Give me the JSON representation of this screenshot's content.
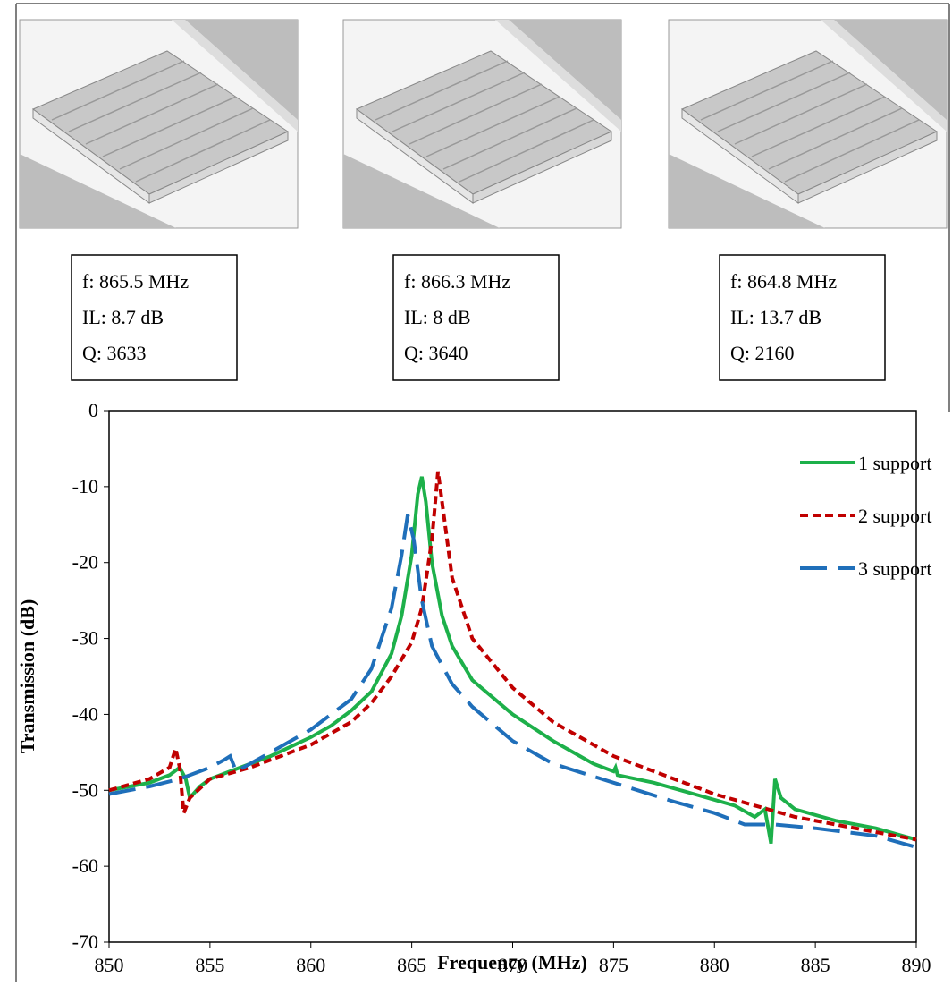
{
  "chart_data": {
    "type": "line",
    "xlabel": "Frequency (MHz)",
    "ylabel": "Transmission (dB)",
    "xlim": [
      850,
      890
    ],
    "ylim": [
      -70,
      0
    ],
    "xticks": [
      850,
      855,
      860,
      865,
      870,
      875,
      880,
      885,
      890
    ],
    "yticks": [
      0,
      -10,
      -20,
      -30,
      -40,
      -50,
      -60,
      -70
    ],
    "legend": "upper right",
    "annotations": [
      [
        "f: 865.5 MHz",
        "IL: 8.7 dB",
        "Q: 3633"
      ],
      [
        "f: 866.3 MHz",
        "IL: 8 dB",
        "Q: 3640"
      ],
      [
        "f: 864.8 MHz",
        "IL: 13.7 dB",
        "Q: 2160"
      ]
    ],
    "series": [
      {
        "name": "1 support",
        "color": "#1db04a",
        "line_style": "solid",
        "x": [
          850,
          852,
          853,
          853.5,
          853.8,
          854,
          854.5,
          855,
          857,
          858,
          860,
          861,
          862,
          863,
          864,
          864.5,
          865,
          865.3,
          865.5,
          865.7,
          866,
          866.5,
          867,
          868,
          870,
          872,
          874,
          875,
          875.1,
          875.2,
          877,
          879,
          881,
          882,
          882.5,
          882.8,
          883,
          883.3,
          884,
          886,
          888,
          890
        ],
        "values": [
          -50,
          -49,
          -48,
          -47,
          -48.5,
          -51,
          -49.5,
          -48.5,
          -46.5,
          -45.5,
          -43,
          -41.5,
          -39.5,
          -37,
          -32,
          -27,
          -19,
          -11,
          -8.7,
          -12,
          -20,
          -27,
          -31,
          -35.5,
          -40,
          -43.5,
          -46.5,
          -47.5,
          -47,
          -48,
          -49,
          -50.5,
          -52,
          -53.5,
          -52.5,
          -57,
          -48.5,
          -51,
          -52.5,
          -54,
          -55,
          -56.5
        ]
      },
      {
        "name": "2 support",
        "color": "#c00000",
        "line_style": "dashed",
        "x": [
          850,
          852,
          853,
          853.3,
          853.5,
          853.7,
          854,
          855,
          857,
          858,
          860,
          862,
          863,
          864,
          865,
          865.5,
          866,
          866.3,
          866.5,
          867,
          868,
          870,
          872,
          875,
          878,
          880,
          882,
          884,
          886,
          888,
          890
        ],
        "values": [
          -50,
          -48.5,
          -47,
          -44.5,
          -47,
          -53,
          -51,
          -48.5,
          -47,
          -46,
          -44,
          -41,
          -38.5,
          -35,
          -30.5,
          -26,
          -17,
          -8,
          -12,
          -22,
          -30,
          -36.5,
          -41,
          -45.5,
          -48.5,
          -50.5,
          -52,
          -53.5,
          -54.5,
          -55.5,
          -56.5
        ]
      },
      {
        "name": "3 support",
        "color": "#1f6fba",
        "line_style": "long-dash",
        "x": [
          850,
          852,
          853.5,
          855,
          855.7,
          856,
          856.3,
          858,
          860,
          862,
          863,
          864,
          864.5,
          864.8,
          865.1,
          865.5,
          866,
          867,
          868,
          870,
          872,
          875,
          878,
          880,
          881.5,
          883,
          885,
          888,
          890
        ],
        "values": [
          -50.5,
          -49.5,
          -48.5,
          -47,
          -46,
          -45.5,
          -47.5,
          -45,
          -42,
          -38,
          -34,
          -26,
          -19,
          -13.7,
          -17,
          -25,
          -31,
          -36,
          -39,
          -43.5,
          -46.5,
          -49,
          -51.5,
          -53,
          -54.5,
          -54.5,
          -55,
          -56,
          -57.5
        ]
      }
    ]
  }
}
